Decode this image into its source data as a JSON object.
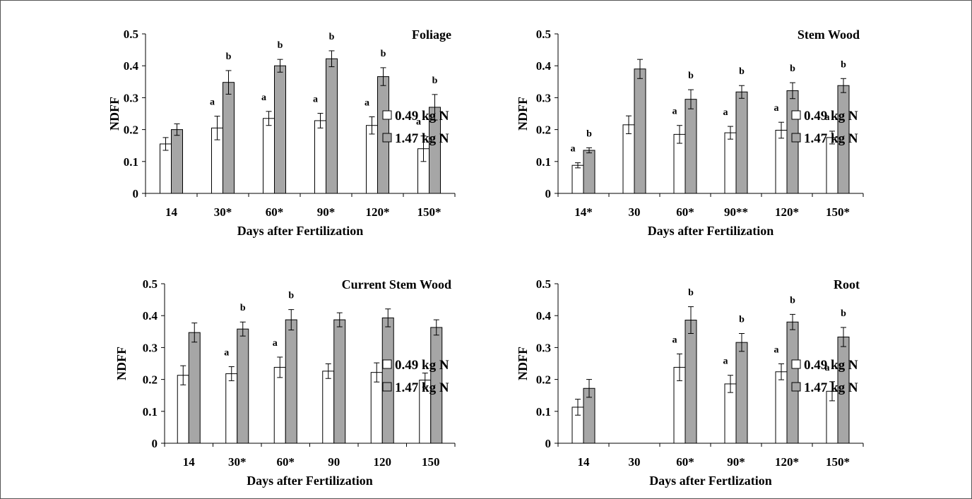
{
  "chart_data": [
    {
      "type": "bar",
      "title": "Foliage",
      "xlabel": "Days after Fertilization",
      "ylabel": "NDFF",
      "ylim": [
        0,
        0.5
      ],
      "yticks": [
        "0",
        "0.1",
        "0.2",
        "0.3",
        "0.4",
        "0.5"
      ],
      "categories": [
        "14",
        "30*",
        "60*",
        "90*",
        "120*",
        "150*"
      ],
      "series": [
        {
          "name": "0.49 kg N",
          "color": "#ffffff",
          "values": [
            0.155,
            0.205,
            0.235,
            0.228,
            0.213,
            0.14
          ],
          "errors": [
            0.02,
            0.037,
            0.022,
            0.023,
            0.027,
            0.04
          ],
          "letters": [
            "",
            "a",
            "a",
            "a",
            "a",
            "a"
          ]
        },
        {
          "name": "1.47 kg N",
          "color": "#a6a6a6",
          "values": [
            0.2,
            0.348,
            0.4,
            0.422,
            0.366,
            0.27
          ],
          "errors": [
            0.018,
            0.037,
            0.02,
            0.025,
            0.028,
            0.04
          ],
          "letters": [
            "",
            "b",
            "b",
            "b",
            "b",
            "b"
          ]
        }
      ]
    },
    {
      "type": "bar",
      "title": "Stem Wood",
      "xlabel": "Days after Fertilization",
      "ylabel": "NDFF",
      "ylim": [
        0,
        0.5
      ],
      "yticks": [
        "0",
        "0.1",
        "0.2",
        "0.3",
        "0.4",
        "0.5"
      ],
      "categories": [
        "14*",
        "30",
        "60*",
        "90**",
        "120*",
        "150*"
      ],
      "series": [
        {
          "name": "0.49 kg N",
          "color": "#ffffff",
          "values": [
            0.088,
            0.215,
            0.185,
            0.19,
            0.198,
            0.175
          ],
          "errors": [
            0.008,
            0.028,
            0.028,
            0.02,
            0.025,
            0.02
          ],
          "letters": [
            "a",
            "",
            "a",
            "a",
            "a",
            "a"
          ]
        },
        {
          "name": "1.47 kg N",
          "color": "#a6a6a6",
          "values": [
            0.135,
            0.39,
            0.295,
            0.318,
            0.322,
            0.338
          ],
          "errors": [
            0.008,
            0.03,
            0.03,
            0.02,
            0.025,
            0.022
          ],
          "letters": [
            "b",
            "",
            "b",
            "b",
            "b",
            "b"
          ]
        }
      ]
    },
    {
      "type": "bar",
      "title": "Current Stem Wood",
      "xlabel": "Days after Fertilization",
      "ylabel": "NDFF",
      "ylim": [
        0,
        0.5
      ],
      "yticks": [
        "0",
        "0.1",
        "0.2",
        "0.3",
        "0.4",
        "0.5"
      ],
      "categories": [
        "14",
        "30*",
        "60*",
        "90",
        "120",
        "150"
      ],
      "series": [
        {
          "name": "0.49 kg N",
          "color": "#ffffff",
          "values": [
            0.213,
            0.218,
            0.238,
            0.226,
            0.222,
            0.198
          ],
          "errors": [
            0.03,
            0.022,
            0.032,
            0.023,
            0.03,
            0.022
          ],
          "letters": [
            "",
            "a",
            "a",
            "",
            "",
            ""
          ]
        },
        {
          "name": "1.47 kg N",
          "color": "#a6a6a6",
          "values": [
            0.347,
            0.358,
            0.387,
            0.387,
            0.393,
            0.363
          ],
          "errors": [
            0.03,
            0.022,
            0.032,
            0.022,
            0.028,
            0.024
          ],
          "letters": [
            "",
            "b",
            "b",
            "",
            "",
            ""
          ]
        }
      ]
    },
    {
      "type": "bar",
      "title": "Root",
      "xlabel": "Days after Fertlization",
      "ylabel": "NDFF",
      "ylim": [
        0,
        0.5
      ],
      "yticks": [
        "0",
        "0.1",
        "0.2",
        "0.3",
        "0.4",
        "0.5"
      ],
      "categories": [
        "14",
        "30",
        "60*",
        "90*",
        "120*",
        "150*"
      ],
      "series": [
        {
          "name": "0.49 kg N",
          "color": "#ffffff",
          "values": [
            0.113,
            null,
            0.238,
            0.186,
            0.224,
            0.163
          ],
          "errors": [
            0.025,
            null,
            0.042,
            0.027,
            0.025,
            0.03
          ],
          "letters": [
            "",
            "",
            "a",
            "a",
            "a",
            "a"
          ]
        },
        {
          "name": "1.47 kg N",
          "color": "#a6a6a6",
          "values": [
            0.172,
            null,
            0.386,
            0.316,
            0.38,
            0.333
          ],
          "errors": [
            0.028,
            null,
            0.042,
            0.028,
            0.024,
            0.03
          ],
          "letters": [
            "",
            "",
            "b",
            "b",
            "b",
            "b"
          ]
        }
      ]
    }
  ]
}
